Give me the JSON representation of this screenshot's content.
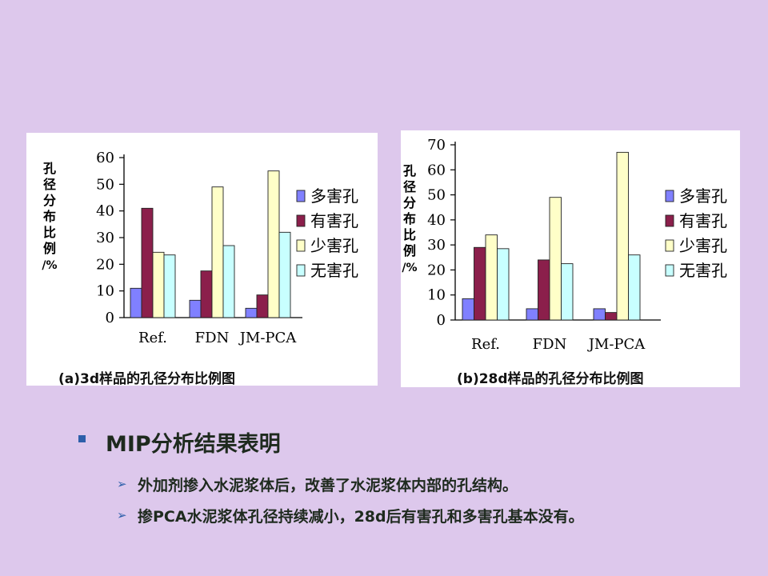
{
  "chart_data": [
    {
      "type": "bar",
      "caption": "(a)3d样品的孔径分布比例图",
      "ylabel": "孔径分布比例/%",
      "categories": [
        "Ref.",
        "FDN",
        "JM-PCA"
      ],
      "ylim": [
        0,
        60
      ],
      "yticks": [
        0,
        10,
        20,
        30,
        40,
        50,
        60
      ],
      "series": [
        {
          "name": "多害孔",
          "color": "#8080ff",
          "values": [
            11,
            6.5,
            3.5
          ]
        },
        {
          "name": "有害孔",
          "color": "#8b1f4b",
          "values": [
            41,
            17.5,
            8.5
          ]
        },
        {
          "name": "少害孔",
          "color": "#ffffc8",
          "values": [
            24.5,
            49,
            55
          ]
        },
        {
          "name": "无害孔",
          "color": "#c8ffff",
          "values": [
            23.5,
            27,
            32
          ]
        }
      ],
      "legend_position": "right",
      "grid": false
    },
    {
      "type": "bar",
      "caption": "(b)28d样品的孔径分布比例图",
      "ylabel": "孔径分布比例/%",
      "categories": [
        "Ref.",
        "FDN",
        "JM-PCA"
      ],
      "ylim": [
        0,
        70
      ],
      "yticks": [
        0,
        10,
        20,
        30,
        40,
        50,
        60,
        70
      ],
      "series": [
        {
          "name": "多害孔",
          "color": "#8080ff",
          "values": [
            8.5,
            4.5,
            4.5
          ]
        },
        {
          "name": "有害孔",
          "color": "#8b1f4b",
          "values": [
            29,
            24,
            3
          ]
        },
        {
          "name": "少害孔",
          "color": "#ffffc8",
          "values": [
            34,
            49,
            67
          ]
        },
        {
          "name": "无害孔",
          "color": "#c8ffff",
          "values": [
            28.5,
            22.5,
            26
          ]
        }
      ],
      "legend_position": "right",
      "grid": false
    }
  ],
  "summary": {
    "heading": "MIP分析结果表明",
    "points": [
      "外加剂掺入水泥浆体后，改善了水泥浆体内部的孔结构。",
      "掺PCA水泥浆体孔径持续减小，28d后有害孔和多害孔基本没有。"
    ]
  },
  "colors": {
    "background": "#ddc8ec",
    "bullet": "#2d5faa"
  }
}
